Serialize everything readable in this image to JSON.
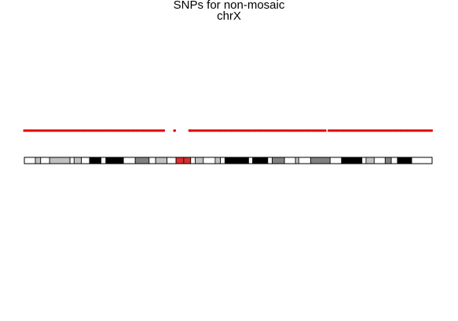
{
  "chart_data": {
    "type": "scatter",
    "title": "SNPs for non-mosaic",
    "subtitle": "chrX",
    "xlabel": "",
    "ylabel": "",
    "snp_color": "#e00000",
    "snp_gaps": [
      [
        0.345,
        0.365
      ],
      [
        0.37,
        0.405
      ],
      [
        0.74,
        0.745
      ]
    ],
    "ideogram": {
      "bands": [
        {
          "start": 0.0,
          "end": 0.027,
          "color": "#ffffff"
        },
        {
          "start": 0.027,
          "end": 0.04,
          "color": "#c0c0c0"
        },
        {
          "start": 0.04,
          "end": 0.062,
          "color": "#ffffff"
        },
        {
          "start": 0.062,
          "end": 0.112,
          "color": "#c0c0c0"
        },
        {
          "start": 0.112,
          "end": 0.122,
          "color": "#ffffff"
        },
        {
          "start": 0.122,
          "end": 0.14,
          "color": "#c0c0c0"
        },
        {
          "start": 0.14,
          "end": 0.16,
          "color": "#ffffff"
        },
        {
          "start": 0.16,
          "end": 0.188,
          "color": "#000000"
        },
        {
          "start": 0.188,
          "end": 0.2,
          "color": "#ffffff"
        },
        {
          "start": 0.2,
          "end": 0.243,
          "color": "#000000"
        },
        {
          "start": 0.243,
          "end": 0.272,
          "color": "#ffffff"
        },
        {
          "start": 0.272,
          "end": 0.306,
          "color": "#808080"
        },
        {
          "start": 0.306,
          "end": 0.322,
          "color": "#ffffff"
        },
        {
          "start": 0.322,
          "end": 0.35,
          "color": "#c0c0c0"
        },
        {
          "start": 0.35,
          "end": 0.372,
          "color": "#ffffff"
        },
        {
          "start": 0.372,
          "end": 0.391,
          "color": "#d92f2f"
        },
        {
          "start": 0.391,
          "end": 0.408,
          "color": "#d92f2f"
        },
        {
          "start": 0.408,
          "end": 0.419,
          "color": "#ffffff"
        },
        {
          "start": 0.419,
          "end": 0.439,
          "color": "#c0c0c0"
        },
        {
          "start": 0.439,
          "end": 0.468,
          "color": "#ffffff"
        },
        {
          "start": 0.468,
          "end": 0.481,
          "color": "#c0c0c0"
        },
        {
          "start": 0.481,
          "end": 0.492,
          "color": "#ffffff"
        },
        {
          "start": 0.492,
          "end": 0.55,
          "color": "#000000"
        },
        {
          "start": 0.55,
          "end": 0.56,
          "color": "#ffffff"
        },
        {
          "start": 0.56,
          "end": 0.597,
          "color": "#000000"
        },
        {
          "start": 0.597,
          "end": 0.608,
          "color": "#ffffff"
        },
        {
          "start": 0.608,
          "end": 0.638,
          "color": "#808080"
        },
        {
          "start": 0.638,
          "end": 0.665,
          "color": "#ffffff"
        },
        {
          "start": 0.665,
          "end": 0.673,
          "color": "#c0c0c0"
        },
        {
          "start": 0.673,
          "end": 0.702,
          "color": "#ffffff"
        },
        {
          "start": 0.702,
          "end": 0.75,
          "color": "#808080"
        },
        {
          "start": 0.75,
          "end": 0.778,
          "color": "#ffffff"
        },
        {
          "start": 0.778,
          "end": 0.828,
          "color": "#000000"
        },
        {
          "start": 0.828,
          "end": 0.838,
          "color": "#ffffff"
        },
        {
          "start": 0.838,
          "end": 0.858,
          "color": "#c0c0c0"
        },
        {
          "start": 0.858,
          "end": 0.885,
          "color": "#ffffff"
        },
        {
          "start": 0.885,
          "end": 0.9,
          "color": "#808080"
        },
        {
          "start": 0.9,
          "end": 0.915,
          "color": "#ffffff"
        },
        {
          "start": 0.915,
          "end": 0.95,
          "color": "#000000"
        },
        {
          "start": 0.95,
          "end": 1.0,
          "color": "#ffffff"
        }
      ]
    }
  }
}
